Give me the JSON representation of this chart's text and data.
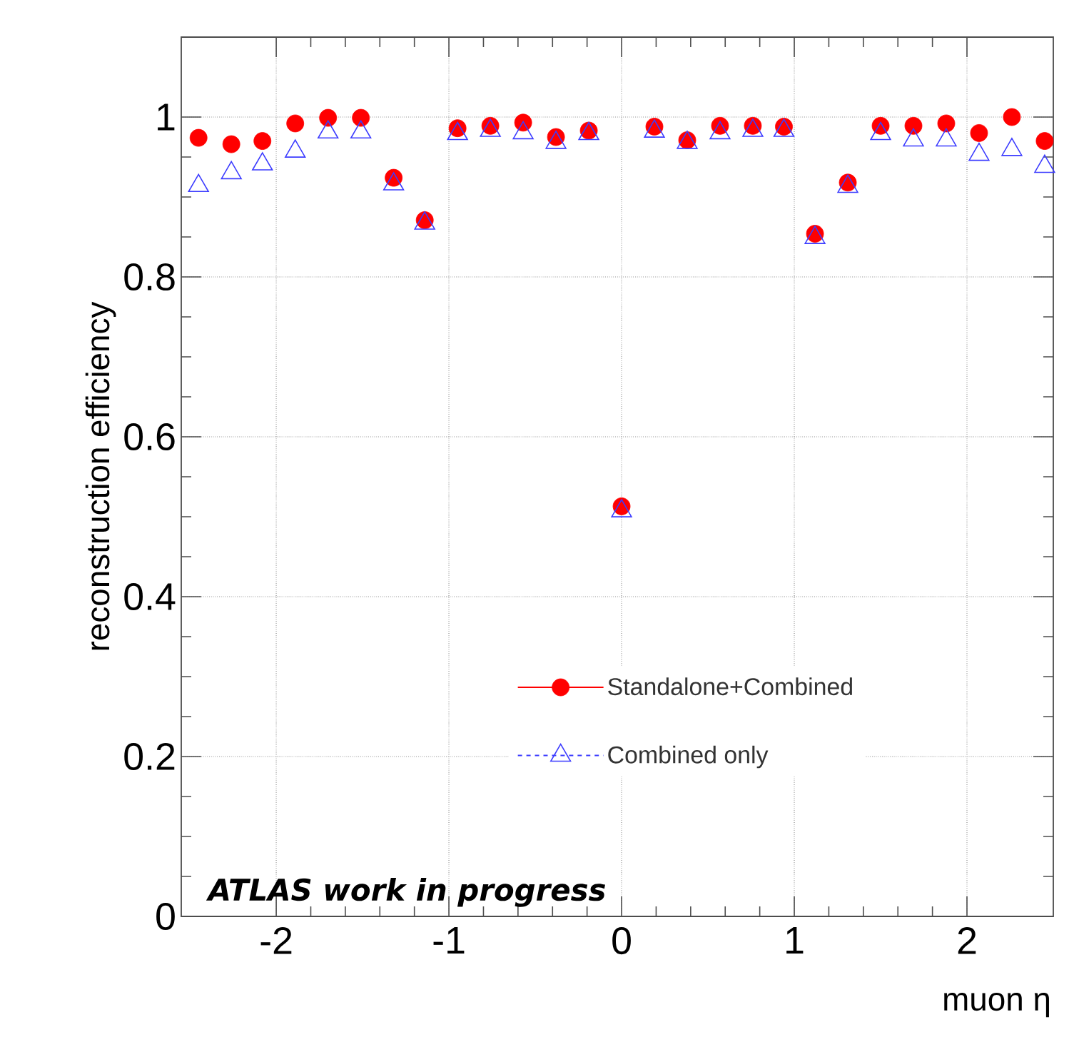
{
  "chart_data": {
    "type": "scatter",
    "xlabel": "muon η",
    "ylabel": "reconstruction efficiency",
    "x": [
      -2.45,
      -2.26,
      -2.08,
      -1.89,
      -1.7,
      -1.51,
      -1.32,
      -1.14,
      -0.95,
      -0.76,
      -0.57,
      -0.38,
      -0.19,
      0,
      0.19,
      0.38,
      0.57,
      0.76,
      0.94,
      1.12,
      1.31,
      1.5,
      1.69,
      1.88,
      2.07,
      2.26,
      2.45
    ],
    "series": [
      {
        "name": "Standalone+Combined",
        "color": "#ff0000",
        "marker": "circle",
        "line_style": "solid",
        "values": [
          0.974,
          0.966,
          0.97,
          0.992,
          0.999,
          0.999,
          0.924,
          0.871,
          0.986,
          0.989,
          0.993,
          0.975,
          0.983,
          0.513,
          0.988,
          0.971,
          0.989,
          0.989,
          0.988,
          0.854,
          0.918,
          0.989,
          0.989,
          0.992,
          0.98,
          1.0,
          0.97
        ]
      },
      {
        "name": "Combined only",
        "color": "#3c3cff",
        "marker": "triangle",
        "line_style": "dashed",
        "values": [
          0.914,
          0.93,
          0.941,
          0.957,
          0.981,
          0.981,
          0.916,
          0.867,
          0.979,
          0.983,
          0.98,
          0.968,
          0.979,
          0.507,
          0.982,
          0.968,
          0.98,
          0.983,
          0.983,
          0.849,
          0.913,
          0.979,
          0.971,
          0.971,
          0.953,
          0.959,
          0.938
        ]
      }
    ],
    "xlim": [
      -2.55,
      2.5
    ],
    "ylim": [
      0,
      1.1
    ],
    "xticks": [
      -2,
      -1,
      0,
      1,
      2
    ],
    "yticks": [
      0,
      0.2,
      0.4,
      0.6,
      0.8,
      1
    ],
    "grid": true,
    "legend": "bottom right",
    "annotations": [
      "ATLAS work in progress"
    ]
  }
}
